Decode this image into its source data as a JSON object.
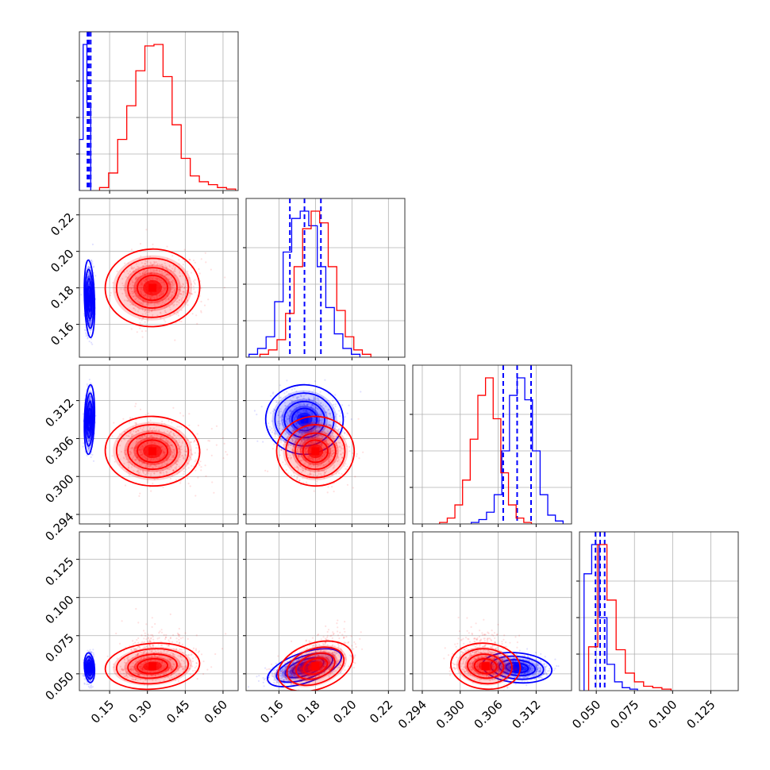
{
  "chart_data": {
    "type": "corner",
    "colors": {
      "blue": "#0000ff",
      "red": "#ff0000",
      "grid": "#b0b0b0"
    },
    "parameters": [
      {
        "range": [
          0.03,
          0.66
        ],
        "ticks": [
          "0.15",
          "0.30",
          "0.45",
          "0.60"
        ]
      },
      {
        "range": [
          0.142,
          0.229
        ],
        "ticks": [
          "0.16",
          "0.18",
          "0.20",
          "0.22"
        ]
      },
      {
        "range": [
          0.2925,
          0.3176
        ],
        "ticks": [
          "0.294",
          "0.300",
          "0.306",
          "0.312"
        ]
      },
      {
        "range": [
          0.039,
          0.143
        ],
        "ticks": [
          "0.050",
          "0.075",
          "0.100",
          "0.125"
        ]
      }
    ],
    "series": [
      {
        "color": "blue",
        "means": [
          0.07,
          0.174,
          0.309,
          0.054
        ],
        "sds": [
          0.008,
          0.0085,
          0.0022,
          0.0039
        ],
        "quantiles": [
          [
            0.062,
            0.068,
            0.075
          ],
          [
            0.166,
            0.174,
            0.183
          ],
          [
            0.3068,
            0.309,
            0.3112
          ],
          [
            0.0495,
            0.0525,
            0.0555
          ]
        ]
      },
      {
        "color": "red",
        "means": [
          0.32,
          0.18,
          0.304,
          0.055
        ],
        "sds": [
          0.075,
          0.0085,
          0.0022,
          0.006
        ],
        "quantiles": []
      }
    ],
    "histograms": {
      "blue": [
        [
          0.35,
          1.0,
          0.6
        ],
        [
          0.02,
          0.06,
          0.14,
          0.38,
          0.72,
          0.95,
          1.0,
          0.9,
          0.62,
          0.34,
          0.16,
          0.06,
          0.02
        ],
        [
          0.01,
          0.03,
          0.08,
          0.2,
          0.5,
          0.88,
          1.0,
          0.85,
          0.5,
          0.2,
          0.06,
          0.02
        ],
        [
          0.8,
          1.0,
          0.5,
          0.18,
          0.06,
          0.02,
          0.01
        ]
      ],
      "red": [
        [
          0.02,
          0.12,
          0.35,
          0.58,
          0.82,
          0.99,
          1.0,
          0.78,
          0.45,
          0.22,
          0.1,
          0.06,
          0.04,
          0.02,
          0.01
        ],
        [
          0.02,
          0.05,
          0.12,
          0.3,
          0.62,
          0.88,
          1.0,
          0.92,
          0.62,
          0.32,
          0.14,
          0.05,
          0.02
        ],
        [
          0.01,
          0.04,
          0.13,
          0.3,
          0.58,
          0.88,
          1.0,
          0.72,
          0.35,
          0.13,
          0.04,
          0.01
        ],
        [
          0.3,
          1.0,
          0.62,
          0.28,
          0.12,
          0.06,
          0.03,
          0.02,
          0.01
        ]
      ]
    }
  }
}
